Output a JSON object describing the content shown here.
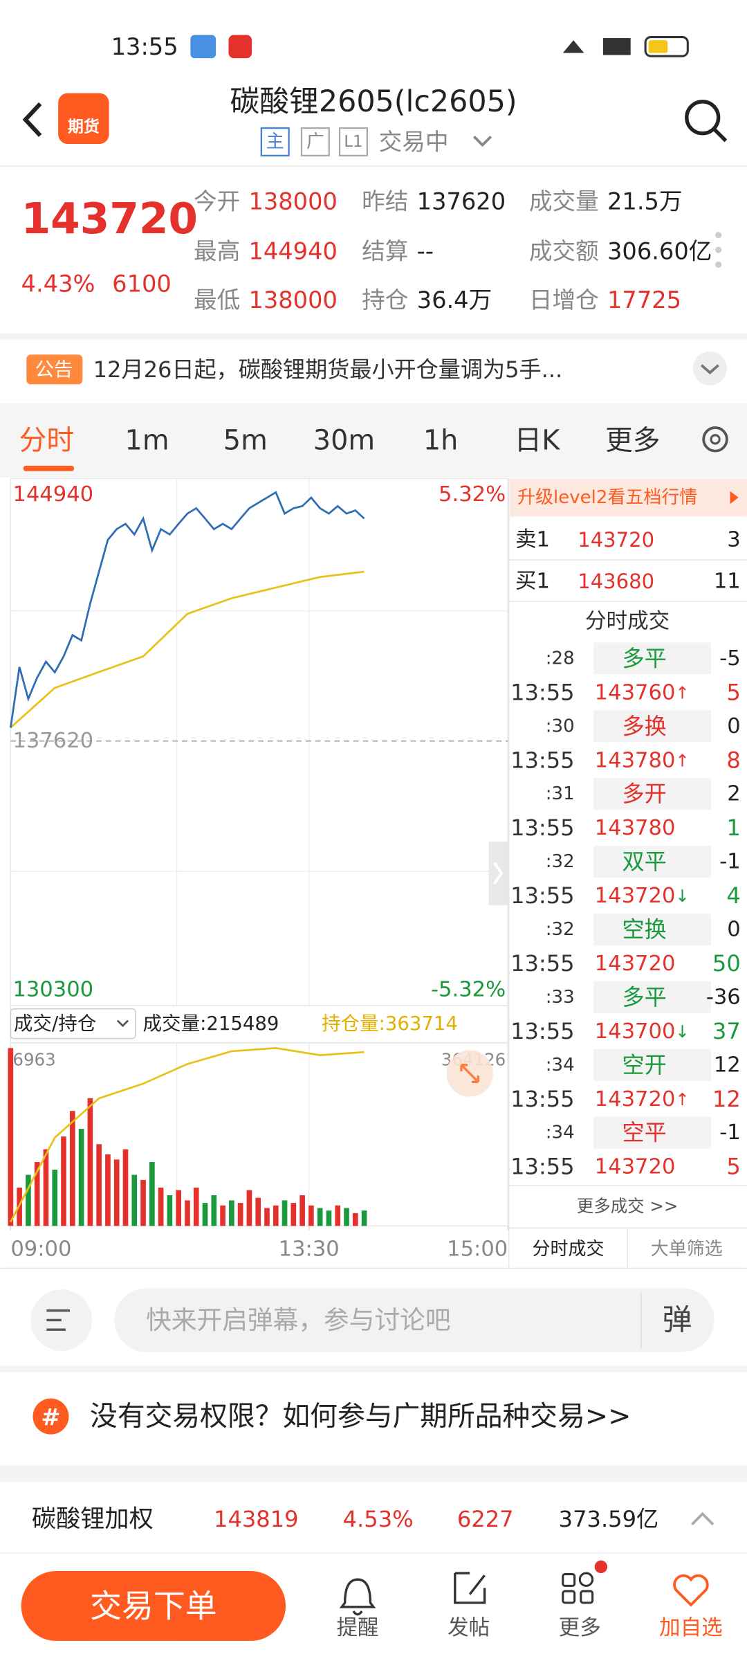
{
  "status": {
    "time": "13:55"
  },
  "header": {
    "badge": "期货",
    "title": "碳酸锂2605(lc2605)",
    "tags": [
      "主",
      "广",
      "L1"
    ],
    "status": "交易中"
  },
  "quote": {
    "price": "143720",
    "pct": "4.43%",
    "change": "6100",
    "fields": [
      {
        "label": "今开",
        "value": "138000",
        "tone": "up"
      },
      {
        "label": "昨结",
        "value": "137620",
        "tone": "flat"
      },
      {
        "label": "成交量",
        "value": "21.5万",
        "tone": "flat"
      },
      {
        "label": "最高",
        "value": "144940",
        "tone": "up"
      },
      {
        "label": "结算",
        "value": "--",
        "tone": "flat"
      },
      {
        "label": "成交额",
        "value": "306.60亿",
        "tone": "flat"
      },
      {
        "label": "最低",
        "value": "138000",
        "tone": "up"
      },
      {
        "label": "持仓",
        "value": "36.4万",
        "tone": "flat"
      },
      {
        "label": "日增仓",
        "value": "17725",
        "tone": "up"
      }
    ]
  },
  "notice": {
    "tag": "公告",
    "text": "12月26日起，碳酸锂期货最小开仓量调为5手..."
  },
  "tabs": [
    "分时",
    "1m",
    "5m",
    "30m",
    "1h",
    "日K",
    "更多"
  ],
  "chart": {
    "ylim": [
      130300,
      144940
    ],
    "ref": 137620,
    "pct_max": "5.32%",
    "pct_min": "-5.32%",
    "xlim": [
      0,
      225
    ],
    "xticks": [
      {
        "value": 0,
        "label": "09:00"
      },
      {
        "value": 135,
        "label": "13:30"
      },
      {
        "value": 225,
        "label": "15:00"
      }
    ],
    "price_color": "#2f6db5",
    "avg_color": "#e8c21a",
    "x": [
      0,
      4,
      8,
      12,
      16,
      20,
      24,
      28,
      32,
      36,
      40,
      44,
      48,
      52,
      56,
      60,
      64,
      68,
      72,
      76,
      80,
      84,
      88,
      92,
      96,
      100,
      104,
      108,
      112,
      116,
      120,
      124,
      128,
      132,
      136,
      140,
      144,
      148,
      152,
      156,
      160
    ],
    "price": [
      138000,
      139710,
      138810,
      139410,
      139860,
      139560,
      140010,
      140610,
      140460,
      141500,
      142400,
      143300,
      143600,
      143750,
      143450,
      143900,
      143000,
      143600,
      143450,
      143750,
      144040,
      144190,
      143900,
      143600,
      143750,
      143600,
      143900,
      144190,
      144340,
      144490,
      144640,
      144040,
      144190,
      144250,
      144490,
      144190,
      144040,
      144250,
      144040,
      144130,
      143900
    ],
    "avg_x": [
      0,
      20,
      40,
      60,
      80,
      100,
      120,
      140,
      160
    ],
    "avg": [
      138000,
      139120,
      139570,
      140010,
      141210,
      141650,
      141950,
      142250,
      142400
    ]
  },
  "volume": {
    "selector": "成交/持仓",
    "vol_label": "成交量:215489",
    "oi_label": "持仓量:363714",
    "ylim": [
      0,
      6963
    ],
    "oi_ylim": [
      346000,
      364126
    ],
    "volumes": [
      6963,
      1500,
      2000,
      2500,
      3000,
      2200,
      3500,
      4500,
      3800,
      5000,
      3200,
      2800,
      2600,
      3000,
      2000,
      1800,
      2500,
      1500,
      1200,
      1400,
      1000,
      1500,
      900,
      1200,
      800,
      1000,
      900,
      1400,
      1100,
      700,
      800,
      1000,
      900,
      1200,
      800,
      700,
      600,
      800,
      700,
      500,
      600
    ],
    "oi_x": [
      0,
      20,
      40,
      60,
      80,
      100,
      120,
      140,
      160
    ],
    "oi": [
      346400,
      355000,
      359000,
      360500,
      362500,
      363800,
      364126,
      363400,
      363714
    ]
  },
  "orderbook": {
    "upgrade": "升级level2看五档行情",
    "rows": [
      {
        "side": "卖1",
        "price": "143720",
        "qty": "3"
      },
      {
        "side": "买1",
        "price": "143680",
        "qty": "11"
      }
    ]
  },
  "trades": {
    "title": "分时成交",
    "rows": [
      {
        "time": ":28",
        "kind": "多平",
        "value": "-5",
        "dir": "down"
      },
      {
        "time": "13:55",
        "price": "143760",
        "arrow": "↑",
        "qty": "5",
        "dir": "up"
      },
      {
        "time": ":30",
        "kind": "多换",
        "value": "0",
        "dir": "up"
      },
      {
        "time": "13:55",
        "price": "143780",
        "arrow": "↑",
        "qty": "8",
        "dir": "up"
      },
      {
        "time": ":31",
        "kind": "多开",
        "value": "2",
        "dir": "up"
      },
      {
        "time": "13:55",
        "price": "143780",
        "qty": "1",
        "dir": "down"
      },
      {
        "time": ":32",
        "kind": "双平",
        "value": "-1",
        "dir": "down"
      },
      {
        "time": "13:55",
        "price": "143720",
        "arrow": "↓",
        "qty": "4",
        "dir": "down"
      },
      {
        "time": ":32",
        "kind": "空换",
        "value": "0",
        "dir": "down"
      },
      {
        "time": "13:55",
        "price": "143720",
        "qty": "50",
        "dir": "down"
      },
      {
        "time": ":33",
        "kind": "多平",
        "value": "-36",
        "dir": "down"
      },
      {
        "time": "13:55",
        "price": "143700",
        "arrow": "↓",
        "qty": "37",
        "dir": "down"
      },
      {
        "time": ":34",
        "kind": "空开",
        "value": "12",
        "dir": "down"
      },
      {
        "time": "13:55",
        "price": "143720",
        "arrow": "↑",
        "qty": "12",
        "dir": "up"
      },
      {
        "time": ":34",
        "kind": "空平",
        "value": "-1",
        "dir": "up"
      },
      {
        "time": "13:55",
        "price": "143720",
        "qty": "5",
        "dir": "up"
      }
    ],
    "more": "更多成交 >>",
    "tabs": [
      "分时成交",
      "大单筛选"
    ]
  },
  "comment": {
    "placeholder": "快来开启弹幕，参与讨论吧",
    "button": "弹"
  },
  "banner": {
    "icon": "#",
    "text": "没有交易权限？如何参与广期所品种交易>>"
  },
  "bottom_quote": {
    "name": "碳酸锂加权",
    "price": "143819",
    "pct": "4.53%",
    "change": "6227",
    "amount": "373.59亿"
  },
  "nav": {
    "trade": "交易下单",
    "items": [
      "提醒",
      "发帖",
      "更多",
      "加自选"
    ]
  }
}
